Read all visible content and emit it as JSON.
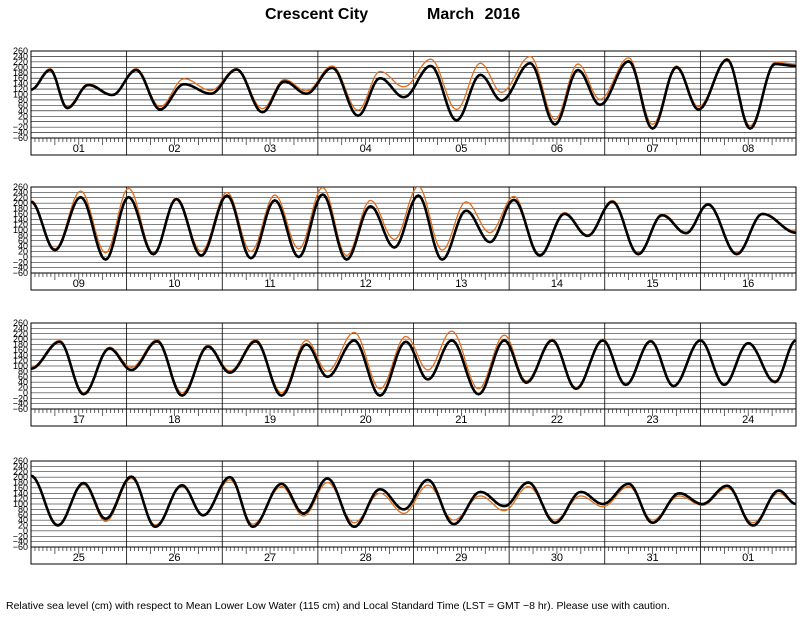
{
  "title": {
    "station": "Crescent City",
    "month": "March   2016"
  },
  "footnote": "Relative sea level (cm) with respect to Mean Lower Low Water (115 cm) and Local Standard Time (LST = GMT −8 hr). Please use with caution.",
  "colors": {
    "predicted": "#000000",
    "observed": "#e07020",
    "grid": "#000000"
  },
  "chart_data": [
    {
      "type": "line",
      "days": [
        "01",
        "02",
        "03",
        "04",
        "05",
        "06",
        "07",
        "08"
      ],
      "yticks": [
        "260",
        "240",
        "220",
        "200",
        "180",
        "160",
        "140",
        "120",
        "100",
        "80",
        "60",
        "40",
        "20",
        "0",
        "−20",
        "−40",
        "−60"
      ],
      "ylim": [
        -60,
        260
      ],
      "series": [
        {
          "points": [
            [
              0,
              118
            ],
            [
              0.2,
              190
            ],
            [
              0.38,
              50
            ],
            [
              0.6,
              135
            ],
            [
              0.85,
              98
            ],
            [
              1.1,
              190
            ],
            [
              1.35,
              45
            ],
            [
              1.6,
              138
            ],
            [
              1.88,
              103
            ],
            [
              2.15,
              192
            ],
            [
              2.42,
              35
            ],
            [
              2.65,
              148
            ],
            [
              2.88,
              103
            ],
            [
              3.15,
              198
            ],
            [
              3.42,
              22
            ],
            [
              3.65,
              160
            ],
            [
              3.9,
              90
            ],
            [
              4.18,
              205
            ],
            [
              4.45,
              5
            ],
            [
              4.7,
              172
            ],
            [
              4.92,
              78
            ],
            [
              5.22,
              215
            ],
            [
              5.48,
              -10
            ],
            [
              5.72,
              190
            ],
            [
              5.95,
              62
            ],
            [
              6.25,
              222
            ],
            [
              6.5,
              -25
            ],
            [
              6.75,
              200
            ],
            [
              6.98,
              45
            ],
            [
              7.28,
              228
            ],
            [
              7.52,
              -25
            ],
            [
              7.78,
              212
            ],
            [
              8.0,
              205
            ]
          ]
        },
        {
          "points": [
            [
              0,
              118
            ],
            [
              0.2,
              195
            ],
            [
              0.38,
              55
            ],
            [
              0.6,
              140
            ],
            [
              0.85,
              100
            ],
            [
              1.1,
              195
            ],
            [
              1.35,
              55
            ],
            [
              1.6,
              158
            ],
            [
              1.88,
              115
            ],
            [
              2.15,
              195
            ],
            [
              2.42,
              48
            ],
            [
              2.65,
              155
            ],
            [
              2.88,
              113
            ],
            [
              3.15,
              205
            ],
            [
              3.42,
              42
            ],
            [
              3.65,
              185
            ],
            [
              3.9,
              128
            ],
            [
              4.18,
              230
            ],
            [
              4.45,
              45
            ],
            [
              4.7,
              215
            ],
            [
              4.92,
              108
            ],
            [
              5.22,
              240
            ],
            [
              5.48,
              8
            ],
            [
              5.72,
              212
            ],
            [
              5.95,
              82
            ],
            [
              6.25,
              235
            ],
            [
              6.5,
              -10
            ],
            [
              6.75,
              205
            ],
            [
              6.98,
              55
            ],
            [
              7.28,
              232
            ],
            [
              7.52,
              -15
            ],
            [
              7.78,
              218
            ],
            [
              8.0,
              212
            ]
          ]
        }
      ]
    },
    {
      "type": "line",
      "days": [
        "09",
        "10",
        "11",
        "12",
        "13",
        "14",
        "15",
        "16"
      ],
      "yticks": [
        "260",
        "240",
        "220",
        "200",
        "180",
        "160",
        "140",
        "120",
        "100",
        "80",
        "60",
        "40",
        "20",
        "0",
        "−20",
        "−40",
        "−60"
      ],
      "ylim": [
        -60,
        260
      ],
      "series": [
        {
          "points": [
            [
              0,
              205
            ],
            [
              0.25,
              25
            ],
            [
              0.52,
              222
            ],
            [
              0.78,
              -10
            ],
            [
              1.02,
              222
            ],
            [
              1.28,
              10
            ],
            [
              1.52,
              215
            ],
            [
              1.78,
              5
            ],
            [
              2.05,
              228
            ],
            [
              2.3,
              -5
            ],
            [
              2.55,
              210
            ],
            [
              2.8,
              0
            ],
            [
              3.05,
              232
            ],
            [
              3.3,
              -10
            ],
            [
              3.55,
              188
            ],
            [
              3.8,
              35
            ],
            [
              4.05,
              228
            ],
            [
              4.3,
              -10
            ],
            [
              4.55,
              172
            ],
            [
              4.8,
              55
            ],
            [
              5.05,
              212
            ],
            [
              5.32,
              5
            ],
            [
              5.58,
              160
            ],
            [
              5.82,
              78
            ],
            [
              6.08,
              205
            ],
            [
              6.35,
              10
            ],
            [
              6.6,
              155
            ],
            [
              6.85,
              88
            ],
            [
              7.08,
              195
            ],
            [
              7.38,
              10
            ],
            [
              7.65,
              160
            ],
            [
              8.0,
              90
            ]
          ]
        },
        {
          "points": [
            [
              0,
              210
            ],
            [
              0.25,
              30
            ],
            [
              0.52,
              245
            ],
            [
              0.78,
              15
            ],
            [
              1.02,
              255
            ],
            [
              1.28,
              15
            ],
            [
              1.52,
              220
            ],
            [
              1.78,
              20
            ],
            [
              2.05,
              240
            ],
            [
              2.3,
              20
            ],
            [
              2.55,
              230
            ],
            [
              2.8,
              30
            ],
            [
              3.05,
              258
            ],
            [
              3.3,
              5
            ],
            [
              3.55,
              210
            ],
            [
              3.8,
              65
            ],
            [
              4.05,
              262
            ],
            [
              4.3,
              25
            ],
            [
              4.55,
              205
            ],
            [
              4.8,
              90
            ],
            [
              5.05,
              225
            ],
            [
              5.32,
              10
            ],
            [
              5.58,
              165
            ],
            [
              5.82,
              82
            ],
            [
              6.08,
              210
            ],
            [
              6.35,
              15
            ],
            [
              6.6,
              160
            ],
            [
              6.85,
              92
            ],
            [
              7.08,
              198
            ],
            [
              7.38,
              15
            ],
            [
              7.65,
              162
            ],
            [
              8.0,
              95
            ]
          ]
        }
      ]
    },
    {
      "type": "line",
      "days": [
        "17",
        "18",
        "19",
        "20",
        "21",
        "22",
        "23",
        "24"
      ],
      "yticks": [
        "260",
        "240",
        "220",
        "200",
        "180",
        "160",
        "140",
        "120",
        "100",
        "80",
        "60",
        "40",
        "20",
        "0",
        "−20",
        "−40",
        "−60"
      ],
      "ylim": [
        -60,
        260
      ],
      "series": [
        {
          "points": [
            [
              0,
              90
            ],
            [
              0.3,
              190
            ],
            [
              0.55,
              -5
            ],
            [
              0.82,
              165
            ],
            [
              1.05,
              85
            ],
            [
              1.32,
              192
            ],
            [
              1.58,
              -10
            ],
            [
              1.85,
              172
            ],
            [
              2.08,
              75
            ],
            [
              2.35,
              192
            ],
            [
              2.62,
              -10
            ],
            [
              2.88,
              180
            ],
            [
              3.1,
              60
            ],
            [
              3.38,
              195
            ],
            [
              3.65,
              -10
            ],
            [
              3.92,
              190
            ],
            [
              4.15,
              50
            ],
            [
              4.4,
              195
            ],
            [
              4.68,
              -5
            ],
            [
              4.95,
              195
            ],
            [
              5.18,
              38
            ],
            [
              5.45,
              195
            ],
            [
              5.7,
              15
            ],
            [
              5.98,
              195
            ],
            [
              6.22,
              30
            ],
            [
              6.48,
              192
            ],
            [
              6.72,
              25
            ],
            [
              7.0,
              195
            ],
            [
              7.25,
              30
            ],
            [
              7.5,
              185
            ],
            [
              7.78,
              40
            ],
            [
              8.0,
              195
            ]
          ]
        },
        {
          "points": [
            [
              0,
              95
            ],
            [
              0.3,
              195
            ],
            [
              0.55,
              0
            ],
            [
              0.82,
              170
            ],
            [
              1.05,
              95
            ],
            [
              1.32,
              198
            ],
            [
              1.58,
              0
            ],
            [
              1.85,
              178
            ],
            [
              2.08,
              82
            ],
            [
              2.35,
              198
            ],
            [
              2.62,
              0
            ],
            [
              2.88,
              195
            ],
            [
              3.1,
              80
            ],
            [
              3.38,
              225
            ],
            [
              3.65,
              15
            ],
            [
              3.92,
              210
            ],
            [
              4.15,
              85
            ],
            [
              4.4,
              230
            ],
            [
              4.68,
              15
            ],
            [
              4.95,
              215
            ],
            [
              5.18,
              45
            ],
            [
              5.45,
              200
            ],
            [
              5.7,
              20
            ],
            [
              5.98,
              200
            ],
            [
              6.22,
              32
            ],
            [
              6.48,
              195
            ],
            [
              6.72,
              28
            ],
            [
              7.0,
              198
            ],
            [
              7.25,
              32
            ],
            [
              7.5,
              188
            ],
            [
              7.78,
              45
            ],
            [
              8.0,
              198
            ]
          ]
        }
      ]
    },
    {
      "type": "line",
      "days": [
        "25",
        "26",
        "27",
        "28",
        "29",
        "30",
        "31",
        "01"
      ],
      "yticks": [
        "260",
        "240",
        "220",
        "200",
        "180",
        "160",
        "140",
        "120",
        "100",
        "80",
        "60",
        "40",
        "20",
        "0",
        "−20",
        "−40",
        "−60"
      ],
      "ylim": [
        -60,
        260
      ],
      "series": [
        {
          "points": [
            [
              0,
              205
            ],
            [
              0.28,
              20
            ],
            [
              0.55,
              178
            ],
            [
              0.78,
              45
            ],
            [
              1.05,
              202
            ],
            [
              1.3,
              15
            ],
            [
              1.58,
              170
            ],
            [
              1.8,
              58
            ],
            [
              2.08,
              200
            ],
            [
              2.32,
              15
            ],
            [
              2.62,
              175
            ],
            [
              2.85,
              65
            ],
            [
              3.1,
              195
            ],
            [
              3.38,
              15
            ],
            [
              3.65,
              155
            ],
            [
              3.9,
              80
            ],
            [
              4.15,
              190
            ],
            [
              4.42,
              25
            ],
            [
              4.7,
              145
            ],
            [
              4.95,
              92
            ],
            [
              5.2,
              180
            ],
            [
              5.48,
              30
            ],
            [
              5.75,
              145
            ],
            [
              5.98,
              100
            ],
            [
              6.25,
              175
            ],
            [
              6.5,
              30
            ],
            [
              6.78,
              140
            ],
            [
              7.02,
              100
            ],
            [
              7.28,
              168
            ],
            [
              7.55,
              20
            ],
            [
              7.82,
              150
            ],
            [
              8.0,
              100
            ]
          ]
        },
        {
          "points": [
            [
              0,
              200
            ],
            [
              0.28,
              25
            ],
            [
              0.55,
              172
            ],
            [
              0.78,
              35
            ],
            [
              1.05,
              195
            ],
            [
              1.3,
              22
            ],
            [
              1.58,
              165
            ],
            [
              1.8,
              55
            ],
            [
              2.08,
              190
            ],
            [
              2.32,
              25
            ],
            [
              2.62,
              165
            ],
            [
              2.85,
              55
            ],
            [
              3.1,
              180
            ],
            [
              3.38,
              30
            ],
            [
              3.65,
              140
            ],
            [
              3.9,
              65
            ],
            [
              4.15,
              170
            ],
            [
              4.42,
              40
            ],
            [
              4.7,
              130
            ],
            [
              4.95,
              75
            ],
            [
              5.2,
              165
            ],
            [
              5.48,
              40
            ],
            [
              5.75,
              130
            ],
            [
              5.98,
              90
            ],
            [
              6.25,
              165
            ],
            [
              6.5,
              40
            ],
            [
              6.78,
              130
            ],
            [
              7.02,
              95
            ],
            [
              7.28,
              160
            ],
            [
              7.55,
              30
            ],
            [
              7.82,
              140
            ],
            [
              8.0,
              100
            ]
          ]
        }
      ]
    }
  ]
}
